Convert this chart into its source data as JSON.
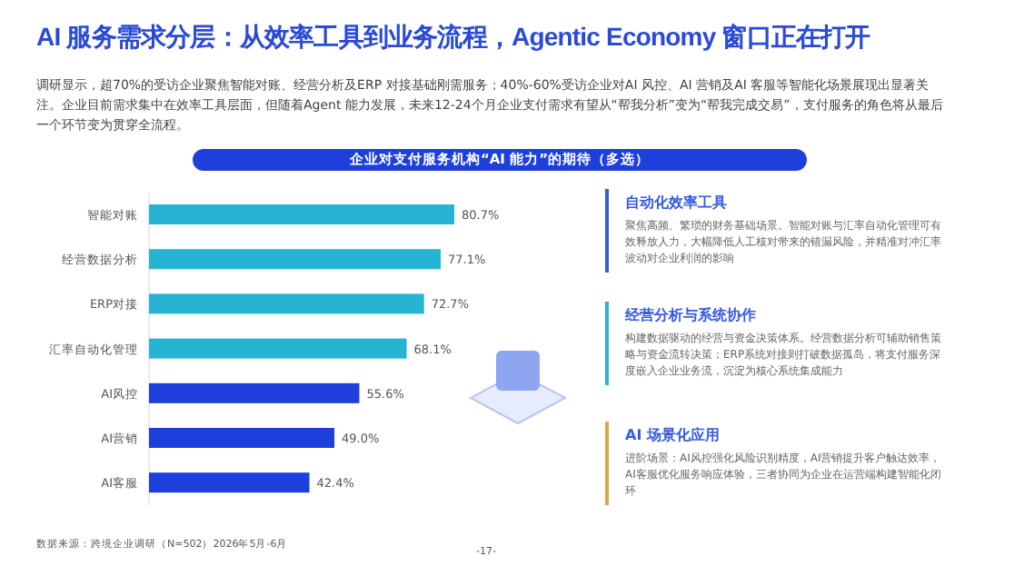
{
  "chart_data": [
    {
      "type": "bar",
      "orientation": "horizontal",
      "title": "AI 服务需求分层：从效率工具到业务流程，Agentic Economy 窗口正在打开",
      "subtitle": "调研显示，超70%的受访企业聚焦智能对账、经营分析及ERP 对接基础刚需服务；40%-60%受访企业对AI 风控、AI 营销及AI 客服等智能化场景展现出显著关注。企业目前需求集中在效率工具层面，但随着Agent 能力发展，未来12-24个月企业支付需求有望从“帮我分析”变为“帮我完成交易”，支付服务的角色将从最后一个环节变为贯穿全流程。",
      "annotations": [
        "企业对支付服务机构“AI 能力”的期待（多选）",
        "数据来源：跨境企业调研（N=502）2026年5月-6月",
        "-17-"
      ],
      "categories": [
        "智能对账",
        "经营数据分析",
        "ERP对接",
        "汇率自动化管理",
        "AI风控",
        "AI营销",
        "AI客服"
      ],
      "values": [
        80.7,
        77.1,
        72.7,
        68.1,
        55.6,
        49.0,
        42.4
      ],
      "value_labels": [
        "80.7%",
        "77.1%",
        "72.7%",
        "68.1%",
        "55.6%",
        "49.0%",
        "42.4%"
      ],
      "colors": [
        "#27b4d3",
        "#27b4d3",
        "#27b4d3",
        "#27b4d3",
        "#1f3fdc",
        "#1f3fdc",
        "#1f3fdc"
      ]
    },
    {
      "type": "other",
      "annotations": [
        "自动化效率工具",
        "聚焦高频、繁琐的财务基础场景。智能对账与汇率自动化管理可有效释放人力，大幅降低人工核对带来的错漏风险，并精准对冲汇率波动对企业利润的影响",
        "经营分析与系统协作",
        "构建数据驱动的经营与资金决策体系。经营数据分析可辅助销售策略与资金流转决策；ERP系统对接则打破数据孤岛，将支付服务深度嵌入企业业务流，沉淀为核心系统集成能力",
        "AI 场景化应用",
        "进阶场景：AI风控强化风险识别精度，AI营销提升客户触达效率，AI客服优化服务响应体验，三者协同为企业在运营端构建智能化闭环"
      ],
      "colors": [
        "#3a5be0",
        "#27b4d3",
        "#d9a84a"
      ]
    }
  ]
}
